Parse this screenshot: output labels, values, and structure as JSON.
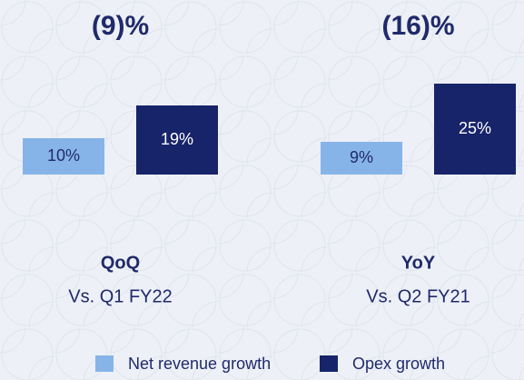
{
  "chart_data": {
    "type": "bar",
    "categories": [
      "QoQ",
      "YoY"
    ],
    "subtitles": [
      "Vs. Q1 FY22",
      "Vs. Q2 FY21"
    ],
    "annotations": [
      "(9)%",
      "(16)%"
    ],
    "series": [
      {
        "name": "Net revenue growth",
        "color": "#86b4e8",
        "values": [
          10,
          9
        ],
        "value_labels": [
          "10%",
          "9%"
        ]
      },
      {
        "name": "Opex growth",
        "color": "#172469",
        "values": [
          19,
          25
        ],
        "value_labels": [
          "19%",
          "25%"
        ]
      }
    ]
  }
}
